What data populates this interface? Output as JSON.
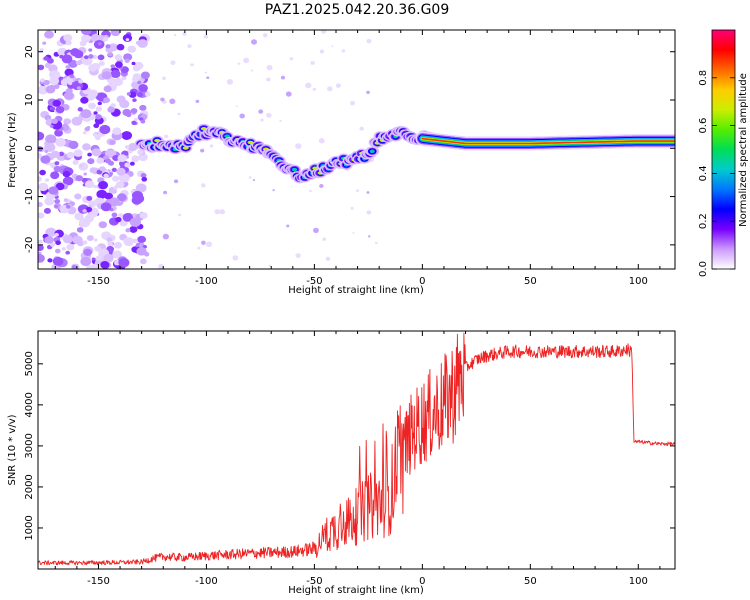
{
  "title": "PAZ1.2025.042.20.36.G09",
  "chart_data": [
    {
      "type": "heatmap",
      "name": "spectrogram",
      "xlabel": "Height of straight line (km)",
      "ylabel": "Frequency (Hz)",
      "xlim": [
        -178,
        117
      ],
      "ylim": [
        -25,
        24.5
      ],
      "xticks": [
        -150,
        -100,
        -50,
        0,
        50,
        100
      ],
      "yticks": [
        -20,
        -10,
        0,
        10,
        20
      ],
      "colorbar": {
        "label": "Normalized spectral amplitude",
        "range": [
          0,
          1
        ],
        "ticks": [
          0.0,
          0.2,
          0.4,
          0.6,
          0.8
        ],
        "colors": [
          "#ffffff",
          "#cc99ff",
          "#7700ff",
          "#0000ff",
          "#0077ff",
          "#00cccc",
          "#00dd55",
          "#55ee00",
          "#ccee00",
          "#ffcc00",
          "#ff6600",
          "#ff0000",
          "#ff0077"
        ]
      },
      "ridge": {
        "x": [
          -130,
          -120,
          -110,
          -102,
          -95,
          -85,
          -75,
          -65,
          -55,
          -45,
          -38,
          -30,
          -25,
          -20,
          -10,
          0,
          10,
          20,
          50,
          100,
          117
        ],
        "y": [
          0.5,
          1,
          0,
          3.5,
          3,
          1,
          0,
          -3,
          -6,
          -4,
          -3,
          -2,
          -1,
          2,
          3,
          2,
          1.5,
          1,
          1,
          1.5,
          1.5
        ]
      }
    },
    {
      "type": "line",
      "name": "snr",
      "xlabel": "Height of straight line (km)",
      "ylabel": "SNR (10 * v/v)",
      "xlim": [
        -178,
        117
      ],
      "ylim": [
        0,
        5800
      ],
      "xticks": [
        -150,
        -100,
        -50,
        0,
        50,
        100
      ],
      "yticks": [
        1000,
        2000,
        3000,
        4000,
        5000
      ],
      "color": "#ee2222",
      "series": [
        {
          "x": [
            -178,
            -160,
            -140,
            -130,
            -125,
            -120,
            -110,
            -100,
            -90,
            -80,
            -70,
            -60,
            -50,
            -45,
            -40,
            -35,
            -30,
            -25,
            -20,
            -15,
            -10,
            -5,
            0,
            5,
            10,
            15,
            20,
            25,
            30,
            35,
            40,
            50,
            60,
            70,
            80,
            90,
            95,
            97,
            98,
            100,
            110,
            117
          ],
          "y": [
            150,
            150,
            160,
            170,
            250,
            300,
            280,
            320,
            350,
            380,
            400,
            420,
            500,
            800,
            1000,
            1100,
            1300,
            1500,
            1600,
            1800,
            2800,
            3300,
            3600,
            3800,
            4000,
            4400,
            4900,
            5100,
            5200,
            5250,
            5300,
            5300,
            5300,
            5300,
            5300,
            5300,
            5350,
            5300,
            3100,
            3100,
            3050,
            3050
          ]
        }
      ]
    }
  ]
}
